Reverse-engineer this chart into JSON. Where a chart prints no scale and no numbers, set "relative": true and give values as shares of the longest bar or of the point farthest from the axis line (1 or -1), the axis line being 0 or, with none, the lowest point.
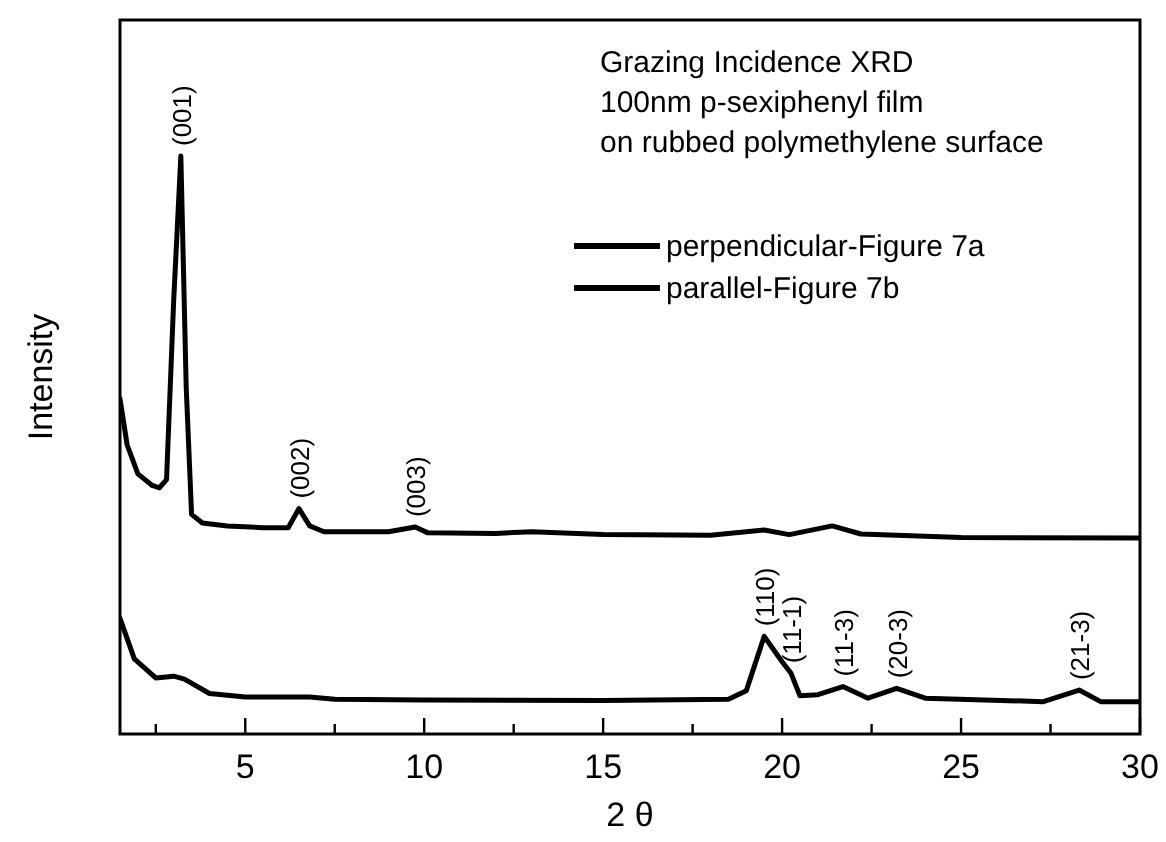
{
  "chart_data": {
    "type": "line",
    "relative": true,
    "xlabel": "2 θ",
    "ylabel": "Intensity",
    "xlim": [
      1.5,
      30
    ],
    "xticks": [
      {
        "value": 2.5,
        "label": null
      },
      5,
      {
        "value": 7.5,
        "label": null
      },
      10,
      {
        "value": 12.5,
        "label": null
      },
      15,
      {
        "value": 17.5,
        "label": null
      },
      20,
      {
        "value": 22.5,
        "label": null
      },
      25,
      {
        "value": 27.5,
        "label": null
      },
      30
    ],
    "legend": "top right",
    "grid": false,
    "line_style": "solid",
    "series": [
      {
        "name": "perpendicular-Figure 7a",
        "color": "#000000",
        "x": [
          1.5,
          1.7,
          2.0,
          2.4,
          2.6,
          2.8,
          3.0,
          3.2,
          3.35,
          3.5,
          3.8,
          4.5,
          5.5,
          6.2,
          6.5,
          6.8,
          7.2,
          9.0,
          9.75,
          10.1,
          12,
          13,
          15,
          18,
          19.5,
          20.2,
          21.4,
          22.2,
          25,
          30
        ],
        "values": [
          0.58,
          0.5,
          0.45,
          0.43,
          0.426,
          0.44,
          0.75,
          1.0,
          0.6,
          0.38,
          0.365,
          0.36,
          0.357,
          0.357,
          0.39,
          0.36,
          0.35,
          0.35,
          0.358,
          0.348,
          0.347,
          0.35,
          0.345,
          0.344,
          0.353,
          0.345,
          0.36,
          0.346,
          0.34,
          0.339
        ]
      },
      {
        "name": "parallel-Figure 7b",
        "color": "#000000",
        "x": [
          1.5,
          1.9,
          2.5,
          3.0,
          3.3,
          4.0,
          5,
          6.8,
          7.5,
          10,
          15,
          18.5,
          19.0,
          19.5,
          20.0,
          20.25,
          20.5,
          21.0,
          21.7,
          22.4,
          23.2,
          24,
          27.3,
          28.3,
          28.9,
          30
        ],
        "values": [
          0.2,
          0.13,
          0.097,
          0.1,
          0.095,
          0.07,
          0.064,
          0.064,
          0.06,
          0.059,
          0.058,
          0.06,
          0.075,
          0.169,
          0.125,
          0.105,
          0.066,
          0.068,
          0.082,
          0.062,
          0.079,
          0.062,
          0.056,
          0.076,
          0.056,
          0.056
        ]
      }
    ],
    "annotations": [
      "Grazing Incidence XRD",
      "100nm p-sexiphenyl film",
      "on rubbed polymethylene surface",
      {
        "text": "(001)",
        "x": 3.2,
        "y": 1.0
      },
      {
        "text": "(002)",
        "x": 6.5,
        "y": 0.39
      },
      {
        "text": "(003)",
        "x": 9.75,
        "y": 0.358
      },
      {
        "text": "(110)",
        "x": 19.5,
        "y": 0.169
      },
      {
        "text": "(11-1)",
        "x": 20.25,
        "y": 0.105
      },
      {
        "text": "(11-3)",
        "x": 21.7,
        "y": 0.082
      },
      {
        "text": "(20-3)",
        "x": 23.2,
        "y": 0.079
      },
      {
        "text": "(21-3)",
        "x": 28.3,
        "y": 0.076
      }
    ]
  }
}
